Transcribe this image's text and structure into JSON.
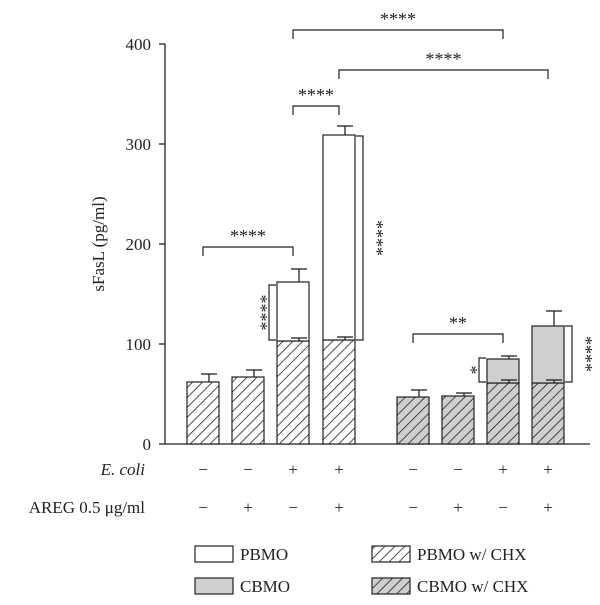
{
  "chart_data": {
    "type": "bar",
    "stacked": true,
    "ylabel": "sFasL (pg/ml)",
    "ylim": [
      0,
      400
    ],
    "yticks": [
      0,
      100,
      200,
      300,
      400
    ],
    "row_labels": [
      "E. coli",
      "AREG 0.5 μg/ml"
    ],
    "groups": [
      {
        "bars": [
          {
            "ecoli": "−",
            "areg": "−",
            "base": 62,
            "base_err": 8,
            "top": 0,
            "top_err": 0
          },
          {
            "ecoli": "−",
            "areg": "+",
            "base": 67,
            "base_err": 7,
            "top": 0,
            "top_err": 0
          },
          {
            "ecoli": "+",
            "areg": "−",
            "base": 103,
            "base_err": 3,
            "top": 59,
            "top_err": 13
          },
          {
            "ecoli": "+",
            "areg": "+",
            "base": 104,
            "base_err": 3,
            "top": 205,
            "top_err": 9
          }
        ]
      },
      {
        "bars": [
          {
            "ecoli": "−",
            "areg": "−",
            "base": 47,
            "base_err": 7,
            "top": 0,
            "top_err": 0
          },
          {
            "ecoli": "−",
            "areg": "+",
            "base": 48,
            "base_err": 3,
            "top": 0,
            "top_err": 0
          },
          {
            "ecoli": "+",
            "areg": "−",
            "base": 61,
            "base_err": 3,
            "top": 24,
            "top_err": 3
          },
          {
            "ecoli": "+",
            "areg": "+",
            "base": 61,
            "base_err": 3,
            "top": 57,
            "top_err": 15
          }
        ]
      }
    ],
    "legend": [
      {
        "name": "PBMO",
        "style": "white"
      },
      {
        "name": "PBMO w/ CHX",
        "style": "white-hatch"
      },
      {
        "name": "CBMO",
        "style": "gray"
      },
      {
        "name": "CBMO w/ CHX",
        "style": "gray-hatch"
      }
    ],
    "legend_placement": "bottom",
    "significance": [
      {
        "label": "****",
        "from_bar": 1,
        "to_bar": 3,
        "type": "horizontal",
        "y": 197
      },
      {
        "label": "****",
        "from_bar": 3,
        "to_bar": 4,
        "type": "horizontal",
        "y": 338
      },
      {
        "label": "****",
        "from_bar": 3,
        "to_bar": 7,
        "type": "horizontal",
        "y": 414
      },
      {
        "label": "****",
        "from_bar": 4,
        "to_bar": 8,
        "type": "horizontal",
        "y": 374
      },
      {
        "label": "**",
        "from_bar": 5,
        "to_bar": 7,
        "type": "horizontal",
        "y": 110
      },
      {
        "label": "****",
        "bar": 3,
        "type": "vertical-left",
        "y_from": 104,
        "y_to": 159
      },
      {
        "label": "****",
        "bar": 4,
        "type": "vertical-right",
        "y_from": 104,
        "y_to": 308
      },
      {
        "label": "*",
        "bar": 7,
        "type": "vertical-left",
        "y_from": 62,
        "y_to": 86
      },
      {
        "label": "****",
        "bar": 8,
        "type": "vertical-right",
        "y_from": 62,
        "y_to": 118
      }
    ]
  },
  "legend_items": {
    "pbmo": "PBMO",
    "pbmo_chx": "PBMO w/ CHX",
    "cbmo": "CBMO",
    "cbmo_chx": "CBMO w/ CHX"
  }
}
